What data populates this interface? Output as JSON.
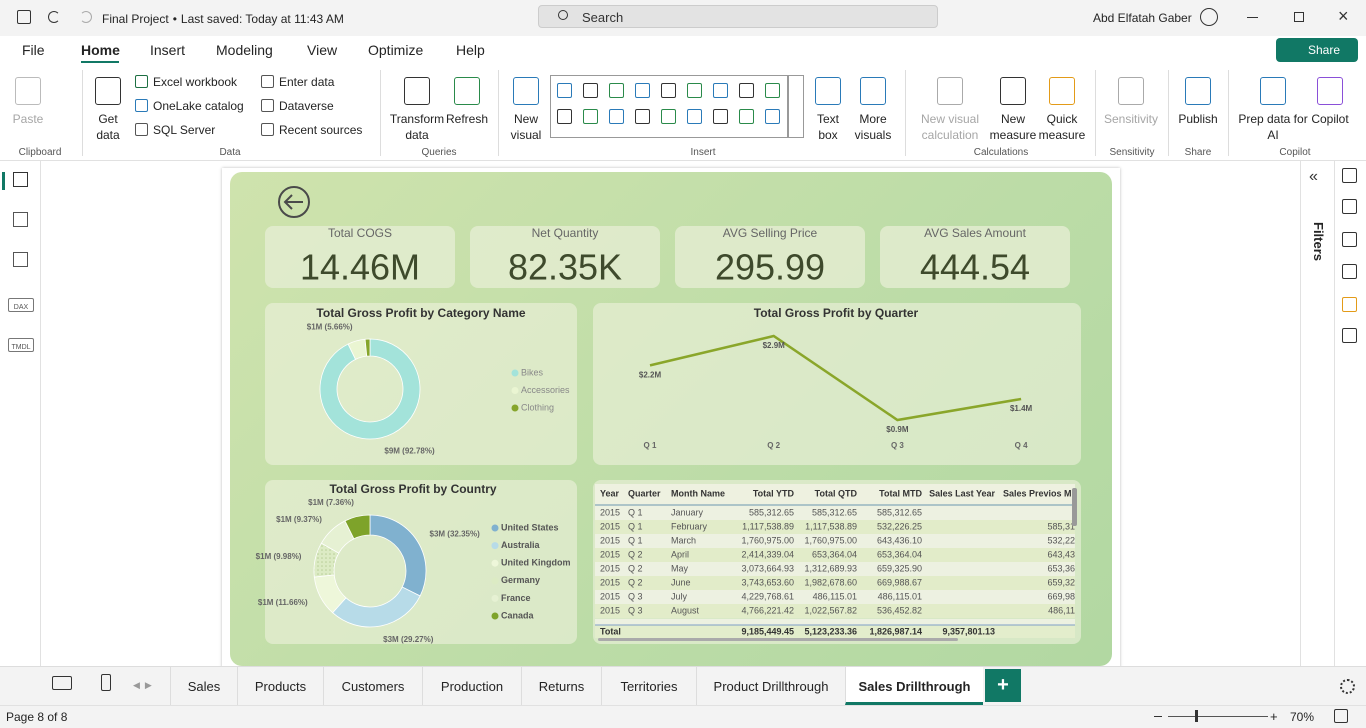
{
  "title_bar": {
    "file": "Final Project",
    "saved": "Last saved: Today at 11:43 AM",
    "search": "Search",
    "user": "Abd Elfatah Gaber"
  },
  "menu": [
    "File",
    "Home",
    "Insert",
    "Modeling",
    "View",
    "Optimize",
    "Help"
  ],
  "share": "Share",
  "ribbon": {
    "buttons": [
      "Paste",
      "Get data",
      "Excel workbook",
      "OneLake catalog",
      "SQL Server",
      "Enter data",
      "Dataverse",
      "Recent sources",
      "Transform data",
      "Refresh",
      "New visual",
      "Text box",
      "More visuals",
      "New visual calculation",
      "New measure",
      "Quick measure",
      "Sensitivity",
      "Publish",
      "Prep data for AI",
      "Copilot"
    ],
    "groups": [
      "Clipboard",
      "Data",
      "Queries",
      "Insert",
      "Calculations",
      "Sensitivity",
      "Share",
      "Copilot"
    ]
  },
  "left_nav": [
    "DAX",
    "TMDL"
  ],
  "filters": "Filters",
  "cards": [
    {
      "title": "Total COGS",
      "value": "14.46M"
    },
    {
      "title": "Net Quantity",
      "value": "82.35K"
    },
    {
      "title": "AVG Selling Price",
      "value": "295.99"
    },
    {
      "title": "AVG Sales Amount",
      "value": "444.54"
    }
  ],
  "chart_data": [
    {
      "type": "pie",
      "title": "Total Gross Profit by Category Name",
      "categories": [
        "Bikes",
        "Accessories",
        "Clothing"
      ],
      "values": [
        92.78,
        5.66,
        1.56
      ],
      "value_labels": [
        "$9M (92.78%)",
        "$1M (5.66%)",
        null
      ],
      "colors": [
        "#a3e3da",
        "#eaf5d2",
        "#86a52b"
      ]
    },
    {
      "type": "line",
      "title": "Total Gross Profit by Quarter",
      "categories": [
        "Q 1",
        "Q 2",
        "Q 3",
        "Q 4"
      ],
      "values": [
        2.2,
        2.9,
        0.9,
        1.4
      ],
      "value_labels": [
        "$2.2M",
        "$2.9M",
        "$0.9M",
        "$1.4M"
      ],
      "color": "#8aa62a"
    },
    {
      "type": "pie",
      "title": "Total Gross Profit by Country",
      "categories": [
        "United States",
        "Australia",
        "United Kingdom",
        "Germany",
        "France",
        "Canada"
      ],
      "values": [
        32.35,
        29.27,
        11.66,
        9.98,
        9.37,
        7.36
      ],
      "value_labels": [
        "$3M (32.35%)",
        "$3M (29.27%)",
        "$1M (11.66%)",
        "$1M (9.98%)",
        "$1M (9.37%)",
        "$1M (7.36%)"
      ],
      "colors": [
        "#80b1cf",
        "#b7dbe8",
        "#eef7da",
        "#dcebc4",
        "#e6f1d3",
        "#7ea32a"
      ]
    }
  ],
  "table": {
    "columns": [
      "Year",
      "Quarter",
      "Month Name",
      "Total YTD",
      "Total QTD",
      "Total MTD",
      "Sales Last Year",
      "Sales Previos M"
    ],
    "rows": [
      {
        "year": "2015",
        "quarter": "Q 1",
        "month": "January",
        "ytd": "585,312.65",
        "qtd": "585,312.65",
        "mtd": "585,312.65"
      },
      {
        "year": "2015",
        "quarter": "Q 1",
        "month": "February",
        "ytd": "1,117,538.89",
        "qtd": "1,117,538.89",
        "mtd": "532,226.25",
        "prev": "585,31"
      },
      {
        "year": "2015",
        "quarter": "Q 1",
        "month": "March",
        "ytd": "1,760,975.00",
        "qtd": "1,760,975.00",
        "mtd": "643,436.10",
        "prev": "532,22"
      },
      {
        "year": "2015",
        "quarter": "Q 2",
        "month": "April",
        "ytd": "2,414,339.04",
        "qtd": "653,364.04",
        "mtd": "653,364.04",
        "prev": "643,43"
      },
      {
        "year": "2015",
        "quarter": "Q 2",
        "month": "May",
        "ytd": "3,073,664.93",
        "qtd": "1,312,689.93",
        "mtd": "659,325.90",
        "prev": "653,36"
      },
      {
        "year": "2015",
        "quarter": "Q 2",
        "month": "June",
        "ytd": "3,743,653.60",
        "qtd": "1,982,678.60",
        "mtd": "669,988.67",
        "prev": "659,32"
      },
      {
        "year": "2015",
        "quarter": "Q 3",
        "month": "July",
        "ytd": "4,229,768.61",
        "qtd": "486,115.01",
        "mtd": "486,115.01",
        "prev": "669,98"
      },
      {
        "year": "2015",
        "quarter": "Q 3",
        "month": "August",
        "ytd": "4,766,221.42",
        "qtd": "1,022,567.82",
        "mtd": "536,452.82",
        "prev": "486,11"
      }
    ],
    "total": {
      "label": "Total",
      "ytd": "9,185,449.45",
      "qtd": "5,123,233.36",
      "mtd": "1,826,987.14",
      "sly": "9,357,801.13"
    }
  },
  "tabs": [
    "Sales",
    "Products",
    "Customers",
    "Production",
    "Returns",
    "Territories",
    "Product Drillthrough",
    "Sales Drillthrough"
  ],
  "active_tab": 7,
  "status": {
    "page": "Page 8 of 8",
    "zoom": "70%"
  }
}
